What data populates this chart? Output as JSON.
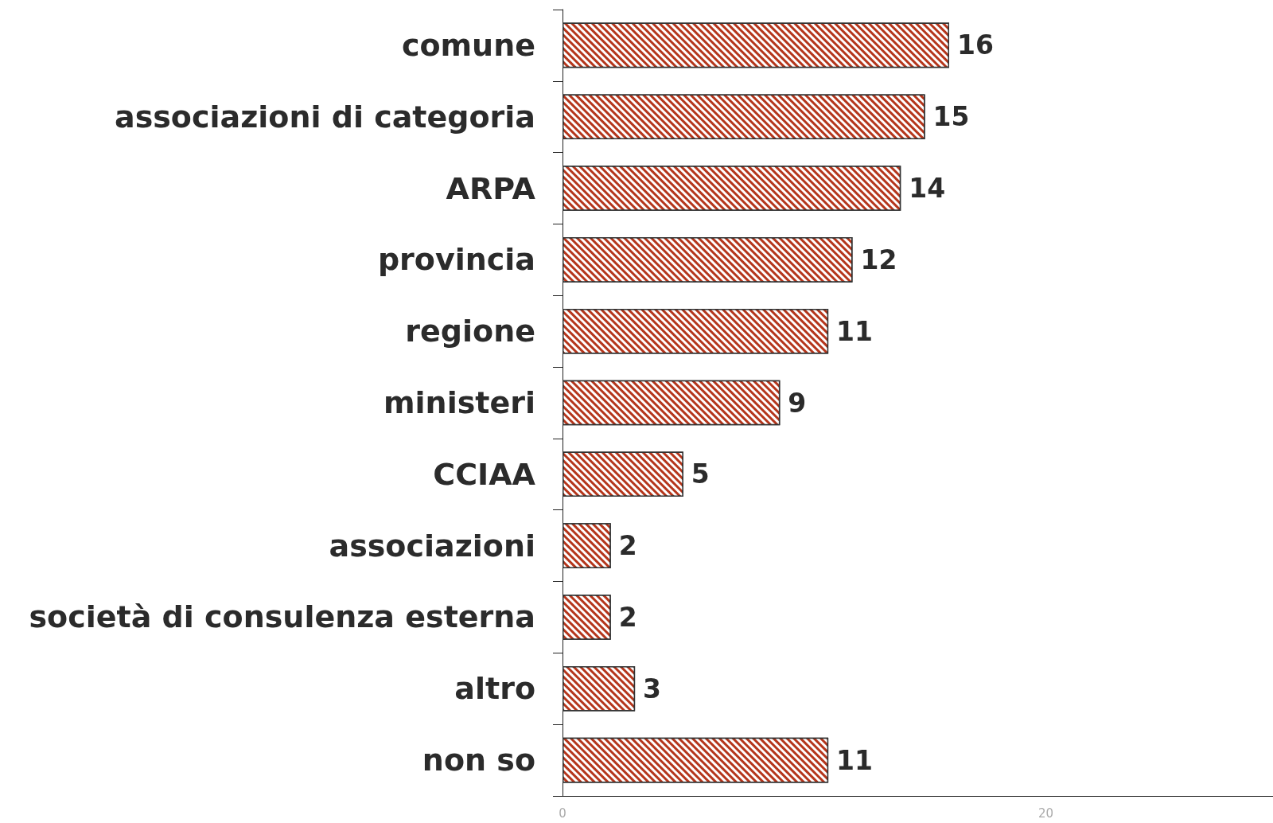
{
  "chart_data": {
    "type": "bar",
    "orientation": "horizontal",
    "categories": [
      "comune",
      "associazioni di categoria",
      "ARPA",
      "provincia",
      "regione",
      "ministeri",
      "CCIAA",
      "associazioni",
      "società di consulenza esterna",
      "altro",
      "non so"
    ],
    "values": [
      16,
      15,
      14,
      12,
      11,
      9,
      5,
      2,
      2,
      3,
      11
    ],
    "color": "#b5361c",
    "xlim": [
      0,
      29.4
    ],
    "xticks": [
      0,
      20
    ],
    "data_labels": true,
    "grid": false
  }
}
